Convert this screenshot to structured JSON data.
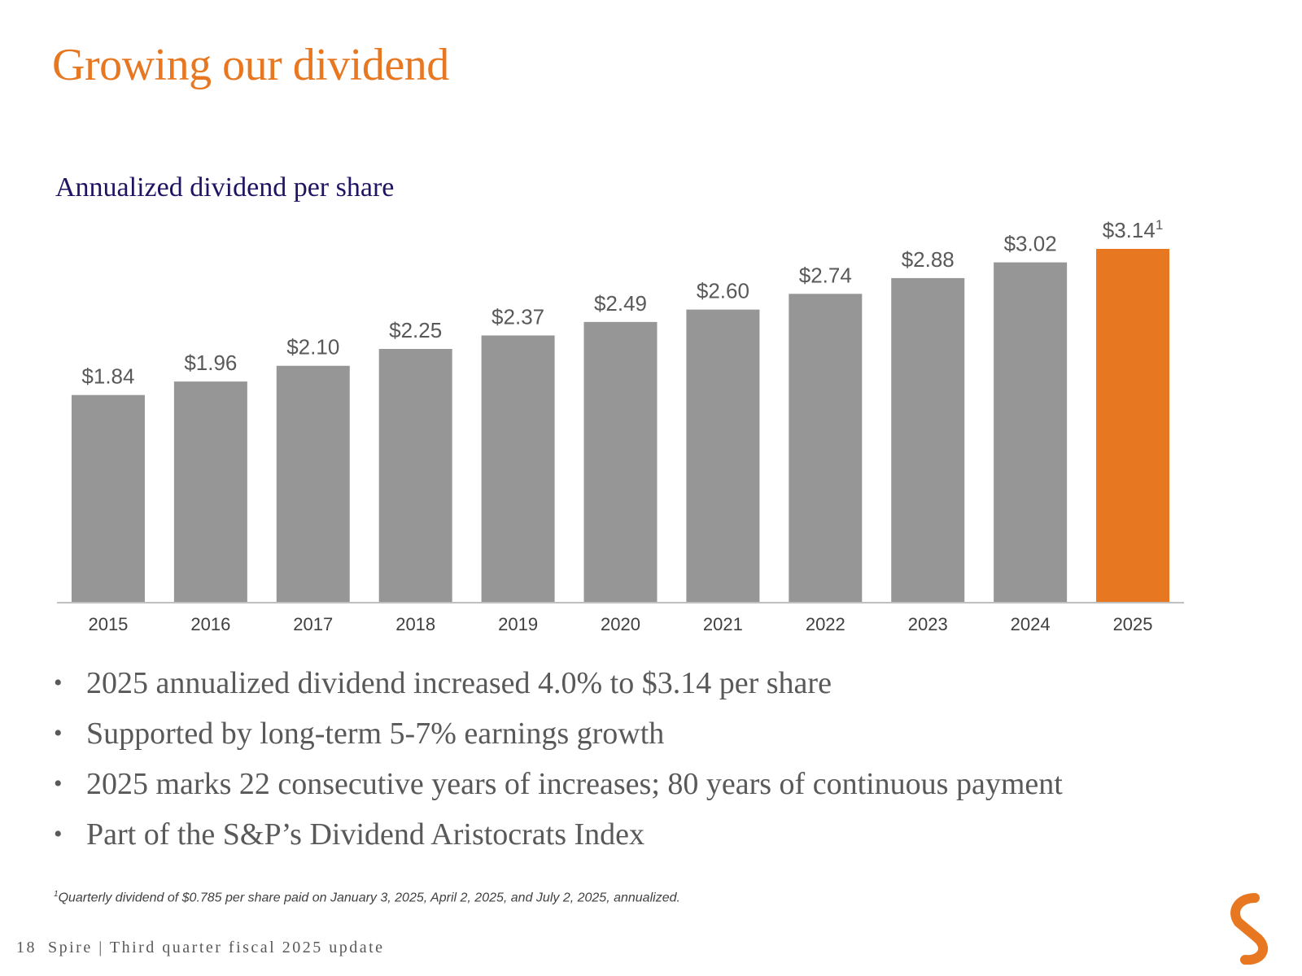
{
  "title": "Growing our dividend",
  "chart_data": {
    "type": "bar",
    "title": "Annualized dividend per share",
    "categories": [
      "2015",
      "2016",
      "2017",
      "2018",
      "2019",
      "2020",
      "2021",
      "2022",
      "2023",
      "2024",
      "2025"
    ],
    "values": [
      1.84,
      1.96,
      2.1,
      2.25,
      2.37,
      2.49,
      2.6,
      2.74,
      2.88,
      3.02,
      3.14
    ],
    "labels": [
      "$1.84",
      "$1.96",
      "$2.10",
      "$2.25",
      "$2.37",
      "$2.49",
      "$2.60",
      "$2.74",
      "$2.88",
      "$3.02",
      "$3.14"
    ],
    "label_footnotes": [
      "",
      "",
      "",
      "",
      "",
      "",
      "",
      "",
      "",
      "",
      "1"
    ],
    "highlight_index": 10,
    "colors": {
      "default": "#969696",
      "highlight": "#E87722",
      "axis": "#BFBFBF"
    },
    "xlabel": "",
    "ylabel": "",
    "ylim": [
      0,
      3.14
    ],
    "grid": false,
    "legend": "none"
  },
  "bullets": [
    "2025 annualized dividend increased 4.0% to $3.14 per share",
    "Supported by long-term 5-7% earnings growth",
    "2025 marks 22 consecutive years of increases; 80 years of continuous payment",
    "Part of the S&P’s Dividend Aristocrats Index"
  ],
  "bullet_symbol": "•",
  "footnote": {
    "marker": "1",
    "text": "Quarterly dividend of $0.785 per share paid on January 3, 2025, April 2, 2025, and July 2, 2025, annualized."
  },
  "footer": {
    "page_number": "18",
    "text": "Spire | Third quarter fiscal 2025 update"
  },
  "logo_icon": "spire-logo-icon",
  "brand_color": "#E87722",
  "subtitle_color": "#1F1464"
}
